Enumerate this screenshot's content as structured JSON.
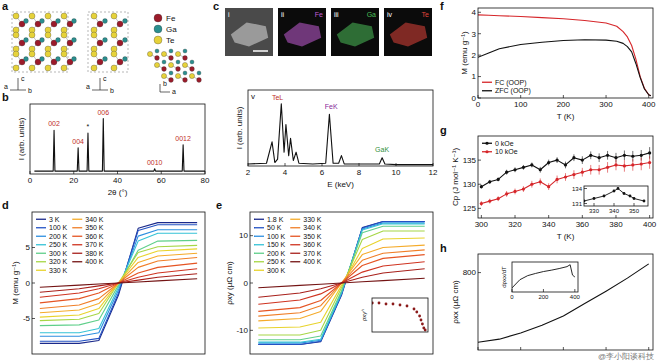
{
  "panel_a": {
    "panel": "a",
    "legend": [
      {
        "name": "Fe",
        "color": "#9b1b2a"
      },
      {
        "name": "Ga",
        "color": "#2a8f8f"
      },
      {
        "name": "Te",
        "color": "#e6d23a"
      }
    ],
    "axes_labels": [
      "a",
      "b",
      "c"
    ]
  },
  "panel_c": {
    "panel": "c",
    "maps": [
      {
        "label": "i"
      },
      {
        "label": "ii",
        "element": "Fe",
        "color": "#c25cd6"
      },
      {
        "label": "iii",
        "element": "Ga",
        "color": "#4cc05a"
      },
      {
        "label": "iv",
        "element": "Te",
        "color": "#e0443a"
      }
    ]
  },
  "watermark": "@李小阳谈科技",
  "chart_data": [
    {
      "panel": "b",
      "type": "line",
      "xlabel": "2θ (°)",
      "ylabel": "I (arb. units)",
      "tick_labels": "x",
      "xlim": [
        0,
        80
      ],
      "ylim": [
        0,
        1.2
      ],
      "xticks": [
        0,
        20,
        40,
        60,
        80
      ],
      "x": [
        2,
        10.6,
        11,
        11.4,
        21.6,
        22,
        22.4,
        26.1,
        26.5,
        26.9,
        33.1,
        33.5,
        33.9,
        56.6,
        57,
        57.4,
        69.6,
        70,
        70.4,
        80
      ],
      "series": [
        {
          "color": "#111111",
          "values": [
            0.05,
            0.05,
            0.75,
            0.05,
            0.05,
            0.45,
            0.05,
            0.05,
            0.7,
            0.05,
            0.05,
            0.95,
            0.05,
            0.05,
            0.09,
            0.05,
            0.05,
            0.5,
            0.05,
            0.05
          ]
        }
      ],
      "annotations": [
        {
          "text": "002",
          "x": 11,
          "y": 0.82,
          "color": "#c0302a"
        },
        {
          "text": "004",
          "x": 22,
          "y": 0.52,
          "color": "#c0302a"
        },
        {
          "text": "*",
          "x": 26.5,
          "y": 0.77,
          "color": "#111111"
        },
        {
          "text": "006",
          "x": 33.5,
          "y": 1.02,
          "color": "#c0302a"
        },
        {
          "text": "0010",
          "x": 57,
          "y": 0.16,
          "color": "#c0302a"
        },
        {
          "text": "0012",
          "x": 70,
          "y": 0.57,
          "color": "#c0302a"
        }
      ]
    },
    {
      "panel": "v",
      "type": "line",
      "xlabel": "E (keV)",
      "ylabel": "I (arb. units)",
      "tick_labels": "x",
      "xlim": [
        2,
        12
      ],
      "ylim": [
        0,
        1.1
      ],
      "xticks": [
        2,
        4,
        6,
        8,
        10,
        12
      ],
      "x": [
        2,
        3.0,
        3.3,
        3.45,
        3.6,
        3.8,
        3.95,
        4.05,
        4.2,
        4.3,
        4.45,
        4.6,
        4.75,
        5.5,
        6.2,
        6.4,
        6.6,
        6.9,
        7.05,
        7.2,
        8.5,
        9.1,
        9.25,
        9.4,
        10,
        12
      ],
      "series": [
        {
          "color": "#111111",
          "values": [
            0.03,
            0.04,
            0.35,
            0.05,
            0.1,
            0.9,
            0.2,
            0.6,
            0.15,
            0.4,
            0.08,
            0.2,
            0.04,
            0.03,
            0.04,
            0.75,
            0.04,
            0.04,
            0.15,
            0.03,
            0.03,
            0.03,
            0.12,
            0.03,
            0.02,
            0.02
          ]
        }
      ],
      "annotations": [
        {
          "text": "TeL",
          "x": 3.6,
          "y": 0.95,
          "color": "#c0302a"
        },
        {
          "text": "FeK",
          "x": 6.5,
          "y": 0.82,
          "color": "#8a2a9a"
        },
        {
          "text": "GaK",
          "x": 9.25,
          "y": 0.2,
          "color": "#2f8f3a"
        }
      ]
    },
    {
      "panel": "d",
      "type": "line",
      "ylabel": "M (emu g⁻¹)",
      "tick_labels": "y",
      "xlim": [
        -4.4,
        4.4
      ],
      "ylim": [
        -10,
        10
      ],
      "yticks": [
        -5,
        0,
        5
      ],
      "legend": "upper left",
      "x": [
        -4,
        -2,
        -1,
        0,
        1,
        2,
        4
      ],
      "series": [
        {
          "name": "3 K",
          "color": "#1b2a8c",
          "values": [
            -8.5,
            -8.5,
            -8.1,
            -1.7,
            7.7,
            8.5,
            8.5
          ]
        },
        {
          "name": "100 K",
          "color": "#2453c4",
          "values": [
            -8.2,
            -8.2,
            -7.8,
            -1.4,
            7.4,
            8.2,
            8.2
          ]
        },
        {
          "name": "200 K",
          "color": "#2d8fe0",
          "values": [
            -7.5,
            -7.5,
            -7.0,
            -1.0,
            6.6,
            7.5,
            7.5
          ]
        },
        {
          "name": "250 K",
          "color": "#35c2d6",
          "values": [
            -7.0,
            -7.0,
            -6.4,
            -0.6,
            5.9,
            7.0,
            7.0
          ]
        },
        {
          "name": "300 K",
          "color": "#5fcf8a",
          "values": [
            -6.0,
            -5.9,
            -5.2,
            -0.3,
            4.6,
            5.9,
            6.0
          ]
        },
        {
          "name": "320 K",
          "color": "#a6d646",
          "values": [
            -5.3,
            -5.1,
            -4.3,
            0,
            4.3,
            5.1,
            5.3
          ]
        },
        {
          "name": "330 K",
          "color": "#e8d32c",
          "values": [
            -4.8,
            -4.5,
            -3.6,
            0,
            3.6,
            4.5,
            4.8
          ]
        },
        {
          "name": "340 K",
          "color": "#f5ab2a",
          "values": [
            -4.2,
            -3.8,
            -2.9,
            0,
            2.9,
            3.8,
            4.2
          ]
        },
        {
          "name": "350 K",
          "color": "#f07e27",
          "values": [
            -3.6,
            -3.1,
            -2.2,
            0,
            2.2,
            3.1,
            3.6
          ]
        },
        {
          "name": "360 K",
          "color": "#e55423",
          "values": [
            -2.8,
            -2.2,
            -1.4,
            0,
            1.4,
            2.2,
            2.8
          ]
        },
        {
          "name": "370 K",
          "color": "#cf3320",
          "values": [
            -2.0,
            -1.4,
            -0.8,
            0,
            0.8,
            1.4,
            2.0
          ]
        },
        {
          "name": "380 K",
          "color": "#a8201b",
          "values": [
            -1.3,
            -0.8,
            -0.4,
            0,
            0.4,
            0.8,
            1.3
          ]
        },
        {
          "name": "400 K",
          "color": "#741414",
          "values": [
            -0.6,
            -0.3,
            -0.15,
            0,
            0.15,
            0.3,
            0.6
          ]
        }
      ]
    },
    {
      "panel": "e",
      "type": "line",
      "ylabel": "ρxy (μΩ cm)",
      "tick_labels": "y",
      "xlim": [
        -4.4,
        4.4
      ],
      "ylim": [
        -15,
        15
      ],
      "yticks": [
        -10,
        0,
        10
      ],
      "legend": "upper left",
      "x": [
        -4,
        -2,
        -1,
        0,
        1,
        2,
        4
      ],
      "series": [
        {
          "name": "1.8 K",
          "color": "#1b2a8c",
          "values": [
            -13,
            -13,
            -12.4,
            -2.6,
            11.7,
            13,
            13
          ]
        },
        {
          "name": "50 K",
          "color": "#2453c4",
          "values": [
            -13,
            -13,
            -12.3,
            -2.4,
            11.6,
            13,
            13
          ]
        },
        {
          "name": "100 K",
          "color": "#2d8fe0",
          "values": [
            -12.7,
            -12.7,
            -12.1,
            -2.3,
            11.4,
            12.7,
            12.7
          ]
        },
        {
          "name": "150 K",
          "color": "#35c2d6",
          "values": [
            -12.5,
            -12.5,
            -11.9,
            -2.0,
            11.2,
            12.5,
            12.5
          ]
        },
        {
          "name": "200 K",
          "color": "#5fcf8a",
          "values": [
            -12,
            -12,
            -11.2,
            -1.7,
            10.6,
            12,
            12
          ]
        },
        {
          "name": "250 K",
          "color": "#a6d646",
          "values": [
            -11,
            -11,
            -10,
            -1,
            9.2,
            11,
            11
          ]
        },
        {
          "name": "300 K",
          "color": "#e8d32c",
          "values": [
            -9.5,
            -9.3,
            -8.3,
            -0.5,
            7.3,
            9.3,
            9.5
          ]
        },
        {
          "name": "330 K",
          "color": "#f5ab2a",
          "values": [
            -8,
            -7.5,
            -6,
            0,
            6,
            7.5,
            8
          ]
        },
        {
          "name": "340 K",
          "color": "#f07e27",
          "values": [
            -7,
            -6.3,
            -4.8,
            0,
            4.8,
            6.3,
            7
          ]
        },
        {
          "name": "350 K",
          "color": "#e55423",
          "values": [
            -6,
            -5.2,
            -3.7,
            0,
            3.7,
            5.2,
            6
          ]
        },
        {
          "name": "360 K",
          "color": "#cf3320",
          "values": [
            -4.5,
            -3.6,
            -2.3,
            0,
            2.3,
            3.6,
            4.5
          ]
        },
        {
          "name": "370 K",
          "color": "#a8201b",
          "values": [
            -3,
            -2.1,
            -1.2,
            0,
            1.2,
            2.1,
            3
          ]
        },
        {
          "name": "400 K",
          "color": "#741414",
          "values": [
            -1,
            -0.5,
            -0.25,
            0,
            0.25,
            0.5,
            1
          ]
        }
      ],
      "inset": {
        "type": "scatter",
        "ylabel": "ρxyᴬ",
        "tick_labels": false,
        "xlim": [
          0,
          400
        ],
        "ylim": [
          0,
          1.7
        ],
        "x": [
          2,
          50,
          100,
          150,
          200,
          250,
          300,
          320,
          340,
          350,
          360,
          370,
          380
        ],
        "series": [
          {
            "color": "#8b1a1a",
            "marker": "circle",
            "values": [
              1.45,
              1.45,
              1.4,
              1.4,
              1.35,
              1.3,
              1.15,
              1.0,
              0.8,
              0.6,
              0.4,
              0.2,
              0.1
            ]
          }
        ]
      }
    },
    {
      "panel": "f",
      "type": "line",
      "xlabel": "T (K)",
      "ylabel": "M (emu g⁻¹)",
      "xlim": [
        0,
        410
      ],
      "ylim": [
        0,
        4.2
      ],
      "xticks": [
        0,
        100,
        200,
        300,
        400
      ],
      "yticks": [
        0,
        1,
        2,
        3,
        4
      ],
      "legend": "lower left",
      "x": [
        0,
        25,
        50,
        100,
        150,
        200,
        250,
        300,
        325,
        340,
        350,
        360,
        370,
        380,
        390,
        400,
        405
      ],
      "series": [
        {
          "name": "FC (OOP)",
          "color": "#d6262a",
          "values": [
            3.88,
            3.86,
            3.84,
            3.8,
            3.75,
            3.7,
            3.62,
            3.5,
            3.35,
            3.1,
            2.85,
            2.45,
            1.8,
            1.0,
            0.45,
            0.15,
            0.1
          ]
        },
        {
          "name": "ZFC (OOP)",
          "color": "#111111",
          "values": [
            1.9,
            2.1,
            2.3,
            2.5,
            2.6,
            2.68,
            2.72,
            2.7,
            2.65,
            2.55,
            2.4,
            2.15,
            1.6,
            0.95,
            0.42,
            0.15,
            0.1
          ]
        }
      ]
    },
    {
      "panel": "g",
      "type": "line",
      "xlabel": "T (K)",
      "ylabel": "Cp (J mol⁻¹ K⁻¹)",
      "xlim": [
        298,
        402
      ],
      "ylim": [
        123,
        140
      ],
      "xticks": [
        300,
        320,
        340,
        360,
        380,
        400
      ],
      "yticks": [
        125,
        130,
        135
      ],
      "legend": "upper left",
      "x": [
        300,
        305,
        310,
        315,
        320,
        325,
        330,
        335,
        340,
        345,
        350,
        355,
        360,
        365,
        370,
        375,
        380,
        385,
        390,
        395,
        400
      ],
      "series": [
        {
          "name": "0 kOe",
          "color": "#111111",
          "marker": "circle",
          "values": [
            129.5,
            130.5,
            131,
            132.5,
            133,
            133.5,
            134,
            133,
            134.5,
            135,
            134,
            135.5,
            135,
            136,
            135.5,
            136,
            135.5,
            136,
            135.8,
            136,
            136.5
          ],
          "errors": [
            0.4,
            0.4,
            0.4,
            0.5,
            0.5,
            0.5,
            0.5,
            0.6,
            0.6,
            0.6,
            0.7,
            0.7,
            0.8,
            0.8,
            0.9,
            0.9,
            1.0,
            1.0,
            1.1,
            1.1,
            1.2
          ]
        },
        {
          "name": "10 kOe",
          "color": "#d6262a",
          "marker": "circle",
          "values": [
            126,
            126.5,
            127,
            128,
            128.5,
            129,
            130,
            130.5,
            129.5,
            131,
            131.5,
            132,
            132.5,
            133,
            133,
            133.5,
            134,
            133.8,
            134,
            134.2,
            134.5
          ],
          "errors": [
            0.5,
            0.5,
            0.5,
            0.6,
            0.6,
            0.6,
            0.7,
            0.7,
            0.7,
            0.8,
            0.8,
            0.9,
            0.9,
            1.0,
            1.0,
            1.1,
            1.1,
            1.2,
            1.2,
            1.3,
            1.3
          ]
        }
      ],
      "inset": {
        "type": "line",
        "xlim": [
          325,
          357
        ],
        "ylim": [
          130.5,
          134.5
        ],
        "xticks": [
          330,
          340,
          350
        ],
        "yticks": [
          131,
          134
        ],
        "x": [
          325,
          330,
          335,
          340,
          342,
          345,
          348,
          350,
          355
        ],
        "series": [
          {
            "color": "#111111",
            "marker": "circle",
            "values": [
              131.5,
              132,
              132.5,
              133.5,
              134,
              133,
              132.5,
              132,
              131.5
            ]
          }
        ]
      }
    },
    {
      "panel": "h",
      "type": "line",
      "ylabel": "ρxx (μΩ cm)",
      "tick_labels": "y",
      "xlim": [
        0,
        410
      ],
      "ylim": [
        550,
        860
      ],
      "xticks": [
        0,
        100,
        200,
        300,
        400
      ],
      "yticks": [
        800
      ],
      "x": [
        0,
        50,
        100,
        150,
        200,
        250,
        300,
        350,
        400
      ],
      "series": [
        {
          "color": "#111111",
          "values": [
            575,
            585,
            605,
            630,
            660,
            700,
            740,
            782,
            828
          ]
        }
      ],
      "inset": {
        "type": "line",
        "ylabel": "dρxx/dT",
        "tick_labels": "x",
        "xlim": [
          0,
          420
        ],
        "ylim": [
          0,
          1.1
        ],
        "xticks": [
          0,
          200,
          400
        ],
        "x": [
          0,
          50,
          100,
          150,
          200,
          250,
          300,
          350,
          370,
          385,
          400
        ],
        "series": [
          {
            "color": "#111111",
            "values": [
              0.15,
              0.45,
              0.6,
              0.68,
              0.75,
              0.8,
              0.86,
              0.93,
              1.0,
              0.62,
              0.55
            ]
          }
        ]
      }
    }
  ]
}
